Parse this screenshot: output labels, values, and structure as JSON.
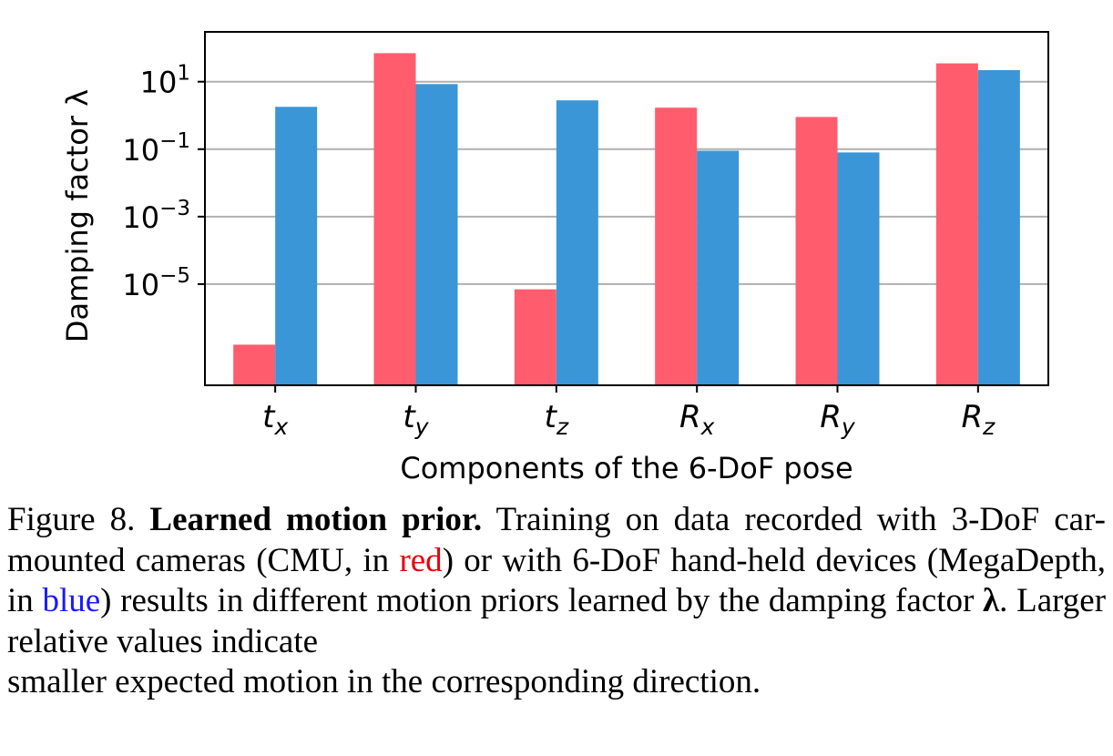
{
  "chart_data": {
    "type": "bar",
    "categories": [
      {
        "base": "t",
        "sub": "x"
      },
      {
        "base": "t",
        "sub": "y"
      },
      {
        "base": "t",
        "sub": "z"
      },
      {
        "base": "R",
        "sub": "x"
      },
      {
        "base": "R",
        "sub": "y"
      },
      {
        "base": "R",
        "sub": "z"
      }
    ],
    "series": [
      {
        "name": "CMU",
        "color": "#ff5c6e",
        "values": [
          1.6e-07,
          70,
          7e-06,
          1.7,
          0.9,
          35
        ]
      },
      {
        "name": "MegaDepth",
        "color": "#3a96d6",
        "values": [
          1.8,
          8.5,
          2.8,
          0.09,
          0.08,
          22
        ]
      }
    ],
    "yscale": "log",
    "ylim": [
      1e-08,
      300
    ],
    "yticks": [
      {
        "value": 10.0,
        "base": "10",
        "exp": "1"
      },
      {
        "value": 0.1,
        "base": "10",
        "exp": "−1"
      },
      {
        "value": 0.001,
        "base": "10",
        "exp": "−3"
      },
      {
        "value": 1e-05,
        "base": "10",
        "exp": "−5"
      }
    ],
    "grid": "horizontal",
    "xlabel": "Components of the 6-DoF pose",
    "ylabel": "Damping factor λ"
  },
  "caption": {
    "figure_label": "Figure 8.",
    "title": "Learned motion prior.",
    "text_1": "Training on data recorded with 3-DoF car-mounted cameras (CMU, in",
    "red_word": "red",
    "text_2": ") or with 6-DoF hand-held devices (MegaDepth, in",
    "blue_word": "blue",
    "text_3": ") results in different motion priors learned by the damping factor",
    "lambda": "λ",
    "text_4": ". Larger relative values indicate",
    "text_5": "smaller expected motion in the corresponding direction."
  }
}
